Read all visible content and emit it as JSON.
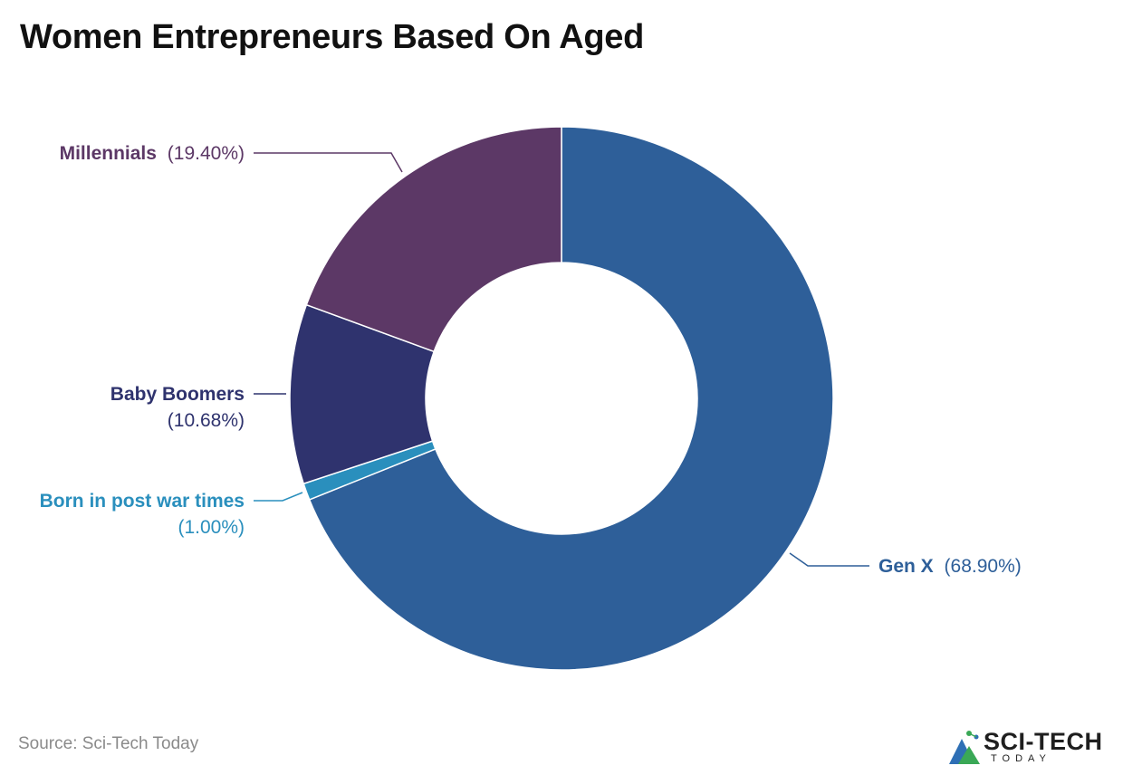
{
  "chart_data": {
    "type": "pie",
    "title": "Women Entrepreneurs Based On Aged",
    "donut": true,
    "slices": [
      {
        "label": "Gen X",
        "value": 68.9,
        "display": "(68.90%)",
        "color": "#2e5f99"
      },
      {
        "label": "Born in post war times",
        "value": 1.0,
        "display": "(1.00%)",
        "color": "#2a8fbd"
      },
      {
        "label": "Baby Boomers",
        "value": 10.68,
        "display": "(10.68%)",
        "color": "#2f336e"
      },
      {
        "label": "Millennials",
        "value": 19.4,
        "display": "(19.40%)",
        "color": "#5c3866"
      }
    ]
  },
  "source": "Source: Sci-Tech Today",
  "logo": {
    "main": "SCI-TECH",
    "sub": "TODAY",
    "icon": "mountain-circuit-logo-icon"
  }
}
